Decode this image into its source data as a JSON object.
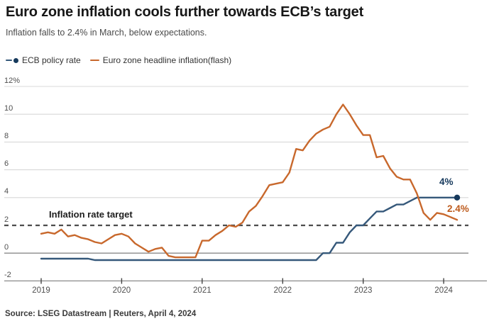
{
  "header": {
    "title": "Euro zone inflation cools further towards ECB’s target",
    "subtitle": "Inflation falls to 2.4% in March, below expectations."
  },
  "legend": {
    "items": [
      {
        "label": "ECB policy rate"
      },
      {
        "label": "Euro zone headline inflation(flash)"
      }
    ]
  },
  "colors": {
    "grid": "#d8d8d8",
    "zero_line": "#8a8a8a",
    "axis": "#8a8a8a",
    "tick": "#444444",
    "target_dash": "#4d4d4d"
  },
  "chart_data": {
    "type": "line",
    "title": "Euro zone inflation cools further towards ECB’s target",
    "x_unit": "month",
    "x_start": "2019-01",
    "x_end": "2024-03",
    "ylim": [
      -2,
      12
    ],
    "grid": true,
    "legend_position": "top",
    "y_ticks": [
      {
        "label": "12%",
        "value": 12
      },
      {
        "label": "10",
        "value": 10
      },
      {
        "label": "8",
        "value": 8
      },
      {
        "label": "6",
        "value": 6
      },
      {
        "label": "4",
        "value": 4
      },
      {
        "label": "2",
        "value": 2
      },
      {
        "label": "0",
        "value": 0
      },
      {
        "label": "-2",
        "value": -2
      }
    ],
    "x_ticks": [
      {
        "label": "2019",
        "month_index": 0
      },
      {
        "label": "2020",
        "month_index": 12
      },
      {
        "label": "2021",
        "month_index": 24
      },
      {
        "label": "2022",
        "month_index": 36
      },
      {
        "label": "2023",
        "month_index": 48
      },
      {
        "label": "2024",
        "month_index": 60
      }
    ],
    "target_line": {
      "label": "Inflation rate target",
      "value": 2
    },
    "end_labels": [
      {
        "text": "4%"
      },
      {
        "text": "2.4%"
      }
    ],
    "series": [
      {
        "name": "ECB policy rate",
        "color": "#35587a",
        "label_color": "#16395c",
        "values": [
          -0.4,
          -0.4,
          -0.4,
          -0.4,
          -0.4,
          -0.4,
          -0.4,
          -0.4,
          -0.5,
          -0.5,
          -0.5,
          -0.5,
          -0.5,
          -0.5,
          -0.5,
          -0.5,
          -0.5,
          -0.5,
          -0.5,
          -0.5,
          -0.5,
          -0.5,
          -0.5,
          -0.5,
          -0.5,
          -0.5,
          -0.5,
          -0.5,
          -0.5,
          -0.5,
          -0.5,
          -0.5,
          -0.5,
          -0.5,
          -0.5,
          -0.5,
          -0.5,
          -0.5,
          -0.5,
          -0.5,
          -0.5,
          -0.5,
          0,
          0,
          0.75,
          0.75,
          1.5,
          2.0,
          2.0,
          2.5,
          3.0,
          3.0,
          3.25,
          3.5,
          3.5,
          3.75,
          4.0,
          4.0,
          4.0,
          4.0,
          4.0,
          4.0,
          4.0
        ]
      },
      {
        "name": "Euro zone headline inflation(flash)",
        "color": "#c8682c",
        "label_color": "#bd5a1b",
        "values": [
          1.4,
          1.5,
          1.4,
          1.7,
          1.2,
          1.3,
          1.1,
          1.0,
          0.8,
          0.7,
          1.0,
          1.3,
          1.4,
          1.2,
          0.7,
          0.4,
          0.1,
          0.3,
          0.4,
          -0.2,
          -0.3,
          -0.3,
          -0.3,
          -0.3,
          0.9,
          0.9,
          1.3,
          1.6,
          2.0,
          1.9,
          2.2,
          3.0,
          3.4,
          4.1,
          4.9,
          5.0,
          5.1,
          5.8,
          7.5,
          7.4,
          8.1,
          8.6,
          8.9,
          9.1,
          10.0,
          10.7,
          10.0,
          9.2,
          8.5,
          8.5,
          6.9,
          7.0,
          6.1,
          5.5,
          5.3,
          5.3,
          4.3,
          2.9,
          2.4,
          2.9,
          2.8,
          2.6,
          2.4
        ]
      }
    ]
  },
  "footer": {
    "source": "Source: LSEG Datastream | Reuters, April 4, 2024"
  }
}
